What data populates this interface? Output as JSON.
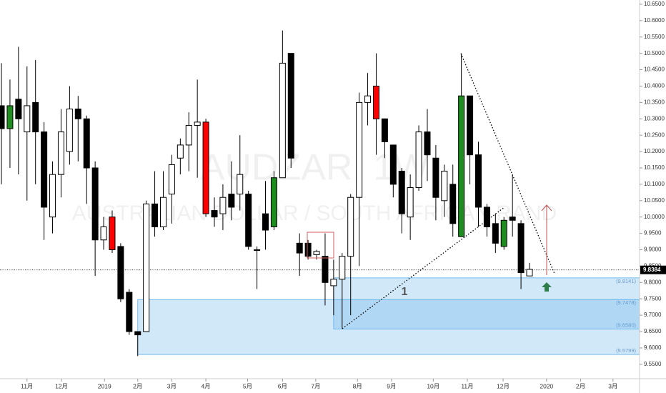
{
  "chart_data": {
    "type": "candlestick",
    "watermark": {
      "symbol": "AUDZAR, 1W",
      "name": "AUSTRALIAN DOLLAR / SOUTH AFRICAN RAND"
    },
    "x": [
      0,
      1,
      2,
      3,
      4,
      5,
      6,
      7,
      8,
      9,
      10,
      11,
      12,
      13,
      14,
      15,
      16,
      17,
      18,
      19,
      20,
      21,
      22,
      23,
      24,
      25,
      26,
      27,
      28,
      29,
      30,
      31,
      32,
      33,
      34,
      35,
      36,
      37,
      38,
      39,
      40,
      41,
      42,
      43,
      44,
      45,
      46,
      47,
      48,
      49,
      50,
      51,
      52,
      53,
      54,
      55,
      56,
      57,
      58,
      59,
      60,
      61,
      62
    ],
    "open": [
      10.34,
      10.27,
      10.36,
      10.26,
      10.35,
      10.26,
      10.0,
      10.13,
      10.2,
      10.33,
      10.3,
      10.15,
      9.93,
      10.0,
      9.91,
      9.77,
      9.65,
      9.65,
      10.04,
      9.97,
      10.07,
      10.18,
      10.22,
      10.28,
      10.29,
      10.02,
      10.01,
      10.07,
      10.07,
      10.07,
      9.9,
      10.01,
      9.97,
      10.12,
      10.5,
      9.92,
      9.92,
      9.885,
      9.88,
      9.79,
      9.81,
      9.88,
      10.06,
      10.35,
      10.4,
      10.3,
      10.22,
      10.14,
      10.0,
      10.09,
      10.26,
      10.18,
      10.05,
      10.1,
      9.94,
      10.37,
      10.19,
      10.03,
      9.98,
      9.91,
      10.0,
      9.98,
      9.82
    ],
    "high": [
      10.47,
      10.42,
      10.52,
      10.46,
      10.48,
      10.29,
      10.17,
      10.33,
      10.4,
      10.37,
      10.31,
      10.17,
      10.0,
      10.02,
      9.92,
      9.78,
      9.65,
      10.05,
      10.14,
      10.14,
      10.19,
      10.24,
      10.32,
      10.42,
      10.3,
      10.06,
      10.1,
      10.17,
      10.25,
      10.08,
      9.91,
      10.11,
      10.14,
      10.57,
      10.5,
      9.95,
      9.93,
      9.9,
      9.95,
      9.87,
      9.89,
      10.07,
      10.38,
      10.44,
      10.5,
      10.3,
      10.22,
      10.15,
      10.13,
      10.28,
      10.33,
      10.22,
      10.16,
      10.16,
      10.5,
      10.37,
      10.23,
      10.04,
      10.01,
      10.0,
      10.13,
      9.99,
      9.86
    ],
    "low": [
      10.1,
      10.15,
      10.13,
      10.05,
      10.1,
      9.93,
      9.95,
      10.06,
      10.16,
      10.17,
      10.04,
      9.82,
      9.9,
      9.89,
      9.74,
      9.64,
      9.575,
      9.65,
      9.94,
      9.96,
      9.98,
      10.13,
      10.14,
      10.12,
      10.0,
      9.97,
      9.96,
      9.99,
      10.02,
      9.9,
      9.78,
      9.9,
      9.96,
      10.12,
      10.15,
      9.82,
      9.87,
      9.87,
      9.73,
      9.7,
      9.66,
      9.7,
      9.85,
      10.28,
      10.19,
      10.18,
      10.06,
      9.95,
      9.93,
      10.08,
      10.11,
      9.99,
      10.0,
      9.94,
      9.94,
      10.1,
      9.97,
      9.94,
      9.89,
      9.9,
      9.94,
      9.78,
      9.82
    ],
    "close": [
      10.27,
      10.34,
      10.3,
      10.34,
      10.26,
      10.03,
      10.13,
      10.26,
      10.33,
      10.3,
      10.15,
      9.93,
      9.97,
      9.9,
      9.75,
      9.65,
      9.64,
      10.04,
      9.97,
      10.06,
      10.16,
      10.22,
      10.28,
      10.29,
      10.01,
      10.0,
      10.06,
      10.03,
      10.13,
      9.91,
      9.898,
      9.96,
      10.12,
      10.47,
      10.18,
      9.89,
      9.88,
      9.895,
      9.8,
      9.81,
      9.88,
      10.06,
      10.35,
      10.37,
      10.3,
      10.23,
      10.1,
      10.01,
      10.09,
      10.26,
      10.19,
      10.06,
      10.14,
      9.98,
      10.37,
      10.19,
      10.03,
      9.97,
      9.92,
      9.99,
      9.99,
      9.83,
      9.84
    ],
    "colors": [
      "#000",
      "#1e8c1e",
      "#000",
      "#fff",
      "#000",
      "#000",
      "#fff",
      "#fff",
      "#fff",
      "#000",
      "#000",
      "#000",
      "#fff",
      "#f00",
      "#000",
      "#000",
      "#000",
      "#fff",
      "#000",
      "#fff",
      "#fff",
      "#fff",
      "#fff",
      "#fff",
      "#f00",
      "#000",
      "#fff",
      "#000",
      "#fff",
      "#000",
      "#000",
      "#000",
      "#1e8c1e",
      "#fff",
      "#000",
      "#000",
      "#000",
      "#fff",
      "#000",
      "#fff",
      "#fff",
      "#fff",
      "#fff",
      "#fff",
      "#f00",
      "#000",
      "#000",
      "#000",
      "#fff",
      "#fff",
      "#000",
      "#000",
      "#fff",
      "#000",
      "#1e8c1e",
      "#000",
      "#000",
      "#000",
      "#000",
      "#1e8c1e",
      "#000",
      "#000",
      "#fff"
    ],
    "xlim": [
      -0.17,
      74.92
    ],
    "ylim": [
      9.506,
      10.663
    ],
    "xticks": [
      {
        "value": 3.0,
        "label": "11月"
      },
      {
        "value": 7.05,
        "label": "12月"
      },
      {
        "value": 12.1,
        "label": "2019"
      },
      {
        "value": 16.0,
        "label": "2月"
      },
      {
        "value": 20.0,
        "label": "3月"
      },
      {
        "value": 24.0,
        "label": "4月"
      },
      {
        "value": 28.9,
        "label": "5月"
      },
      {
        "value": 33.0,
        "label": "6月"
      },
      {
        "value": 36.9,
        "label": "7月"
      },
      {
        "value": 41.8,
        "label": "8月"
      },
      {
        "value": 45.8,
        "label": "9月"
      },
      {
        "value": 50.7,
        "label": "10月"
      },
      {
        "value": 54.7,
        "label": "11月"
      },
      {
        "value": 58.9,
        "label": "12月"
      },
      {
        "value": 64.0,
        "label": "2020"
      },
      {
        "value": 68.0,
        "label": "2月"
      },
      {
        "value": 71.8,
        "label": "3月"
      }
    ],
    "yticks": [
      {
        "value": 10.65,
        "label": "10.6500"
      },
      {
        "value": 10.6,
        "label": "10.6000"
      },
      {
        "value": 10.55,
        "label": "10.5500"
      },
      {
        "value": 10.5,
        "label": "10.5000"
      },
      {
        "value": 10.45,
        "label": "10.4500"
      },
      {
        "value": 10.4,
        "label": "10.4000"
      },
      {
        "value": 10.35,
        "label": "10.3500"
      },
      {
        "value": 10.3,
        "label": "10.3000"
      },
      {
        "value": 10.25,
        "label": "10.2500"
      },
      {
        "value": 10.2,
        "label": "10.2000"
      },
      {
        "value": 10.15,
        "label": "10.1500"
      },
      {
        "value": 10.1,
        "label": "10.1000"
      },
      {
        "value": 10.05,
        "label": "10.0500"
      },
      {
        "value": 10.0,
        "label": "10.0000"
      },
      {
        "value": 9.95,
        "label": "9.9500"
      },
      {
        "value": 9.9,
        "label": "9.9000"
      },
      {
        "value": 9.85,
        "label": "9.8500"
      },
      {
        "value": 9.8,
        "label": "9.8000"
      },
      {
        "value": 9.75,
        "label": "9.7500"
      },
      {
        "value": 9.7,
        "label": "9.7000"
      },
      {
        "value": 9.65,
        "label": "9.6500"
      },
      {
        "value": 9.6,
        "label": "9.6000"
      },
      {
        "value": 9.55,
        "label": "9.5500"
      }
    ],
    "last_price": {
      "value": 9.8384,
      "label": "9.8384"
    },
    "zones": [
      {
        "label": "1",
        "start": 39,
        "top": {
          "value": 9.8141,
          "label": "(9.8141)"
        },
        "bottom": {
          "value": 9.658,
          "label": "(9.6580)"
        }
      },
      {
        "start": 16,
        "top": {
          "value": 9.7478,
          "label": "(9.7478)"
        },
        "bottom": {
          "value": 9.5799,
          "label": "(9.5799)"
        }
      }
    ]
  }
}
